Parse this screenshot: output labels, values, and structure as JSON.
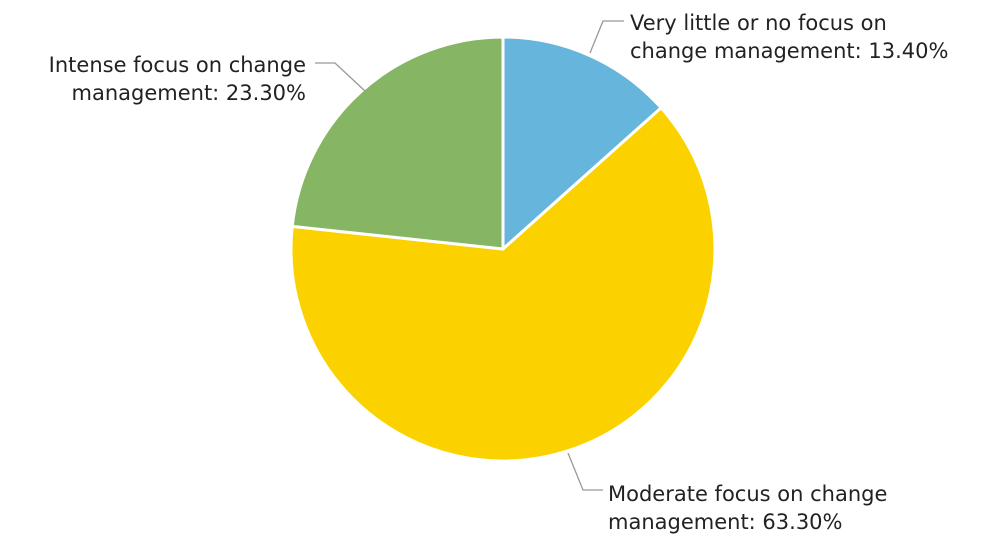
{
  "chart_data": {
    "type": "pie",
    "start_angle_deg": 0,
    "direction": "clockwise",
    "slices": [
      {
        "name": "Very little or no focus on change management",
        "value": 13.4,
        "label_lines": [
          "Very little or no focus on",
          "change management: 13.40%"
        ],
        "color": "#66b5dc"
      },
      {
        "name": "Moderate focus on change management",
        "value": 63.3,
        "label_lines": [
          "Moderate focus on change",
          "management: 63.30%"
        ],
        "color": "#fbd200"
      },
      {
        "name": "Intense focus on change management",
        "value": 23.3,
        "label_lines": [
          "Intense focus on change",
          "management: 23.30%"
        ],
        "color": "#86b664"
      }
    ]
  }
}
